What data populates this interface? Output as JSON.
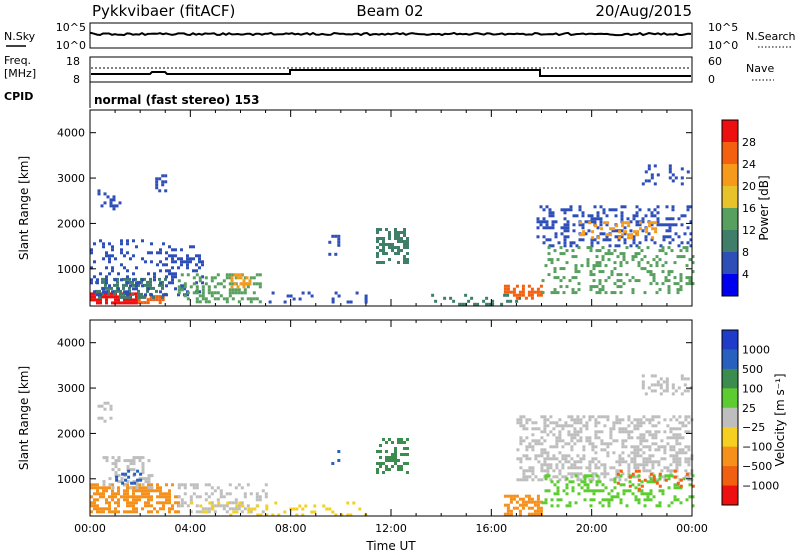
{
  "header": {
    "station": "Pykkvibaer (fitACF)",
    "beam": "Beam 02",
    "date": "20/Aug/2015"
  },
  "summary": {
    "left_labels": {
      "nsky": "N.Sky",
      "freq": "Freq.",
      "freq_unit": "[MHz]",
      "cpid": "CPID"
    },
    "right_labels": {
      "nsearch": "N.Search",
      "nave": "Nave"
    },
    "nsky_ticks": [
      "10^5",
      "10^0"
    ],
    "nsearch_ticks": [
      "10^5",
      "10^0"
    ],
    "freq_ticks": [
      "18",
      "8"
    ],
    "nave_ticks": [
      "60",
      "0"
    ],
    "cpid_text": "normal (fast stereo) 153"
  },
  "chart_data": [
    {
      "type": "heatmap",
      "quantity": "power",
      "ylabel": "Slant Range [km]",
      "xlabel": "",
      "ylim": [
        180,
        4500
      ],
      "yticks": [
        1000,
        2000,
        3000,
        4000
      ],
      "xlim": [
        0,
        24
      ],
      "colorbar": {
        "label": "Power [dB]",
        "ticks": [
          4,
          8,
          12,
          16,
          20,
          24,
          28
        ],
        "range": [
          0,
          32
        ],
        "colors": [
          "#0000ee",
          "#2f4fb8",
          "#3f7f6a",
          "#58a060",
          "#e7c22a",
          "#f59a1a",
          "#f36010",
          "#ee1010"
        ]
      },
      "scatter_regions": [
        {
          "t": [
            0.0,
            1.9
          ],
          "r": [
            250,
            480
          ],
          "color": "#ee1010",
          "density": 0.8
        },
        {
          "t": [
            1.9,
            2.9
          ],
          "r": [
            250,
            420
          ],
          "color": "#f36010",
          "density": 0.65
        },
        {
          "t": [
            0.2,
            3.0
          ],
          "r": [
            400,
            800
          ],
          "color": "#3f7f6a",
          "density": 0.5
        },
        {
          "t": [
            0.0,
            4.5
          ],
          "r": [
            450,
            1650
          ],
          "color": "#2f4fb8",
          "density": 0.22
        },
        {
          "t": [
            0.3,
            1.2
          ],
          "r": [
            2300,
            2750
          ],
          "color": "#2f4fb8",
          "density": 0.35
        },
        {
          "t": [
            2.6,
            3.0
          ],
          "r": [
            2700,
            3150
          ],
          "color": "#2f4fb8",
          "density": 0.35
        },
        {
          "t": [
            3.5,
            6.8
          ],
          "r": [
            300,
            900
          ],
          "color": "#58a060",
          "density": 0.35
        },
        {
          "t": [
            5.6,
            6.4
          ],
          "r": [
            600,
            900
          ],
          "color": "#f59a1a",
          "density": 0.5
        },
        {
          "t": [
            7.0,
            11.0
          ],
          "r": [
            250,
            500
          ],
          "color": "#2f4fb8",
          "density": 0.22
        },
        {
          "t": [
            9.5,
            9.9
          ],
          "r": [
            1300,
            1750
          ],
          "color": "#2f4fb8",
          "density": 0.3
        },
        {
          "t": [
            11.4,
            12.6
          ],
          "r": [
            1150,
            1900
          ],
          "color": "#3f7f6a",
          "density": 0.45
        },
        {
          "t": [
            13.6,
            17.4
          ],
          "r": [
            200,
            450
          ],
          "color": "#3f7f6a",
          "density": 0.22
        },
        {
          "t": [
            16.5,
            18.0
          ],
          "r": [
            350,
            650
          ],
          "color": "#f36010",
          "density": 0.55
        },
        {
          "t": [
            17.8,
            24.0
          ],
          "r": [
            1500,
            2400
          ],
          "color": "#2f4fb8",
          "density": 0.32
        },
        {
          "t": [
            19.5,
            22.5
          ],
          "r": [
            1700,
            2050
          ],
          "color": "#f59a1a",
          "density": 0.3
        },
        {
          "t": [
            18.0,
            24.0
          ],
          "r": [
            500,
            1500
          ],
          "color": "#58a060",
          "density": 0.25
        },
        {
          "t": [
            22.0,
            23.8
          ],
          "r": [
            2900,
            3300
          ],
          "color": "#2f4fb8",
          "density": 0.25
        }
      ]
    },
    {
      "type": "heatmap",
      "quantity": "velocity",
      "ylabel": "Slant Range [km]",
      "xlabel": "Time UT",
      "ylim": [
        180,
        4500
      ],
      "yticks": [
        1000,
        2000,
        3000,
        4000
      ],
      "xlim": [
        0,
        24
      ],
      "xtick_labels": [
        "00:00",
        "04:00",
        "08:00",
        "12:00",
        "16:00",
        "20:00",
        "00:00"
      ],
      "colorbar": {
        "label": "Velocity [m s⁻¹]",
        "ticks": [
          "1000",
          "500",
          "100",
          "25",
          "−25",
          "−100",
          "−500",
          "−1000"
        ],
        "colors": [
          "#1e3cc8",
          "#2860c0",
          "#3c8c50",
          "#5ccc30",
          "#bebebe",
          "#f5d020",
          "#f5901a",
          "#f06010",
          "#ee1010"
        ]
      },
      "scatter_regions": [
        {
          "t": [
            0.0,
            3.5
          ],
          "r": [
            250,
            900
          ],
          "color": "#f5901a",
          "density": 0.55
        },
        {
          "t": [
            0.5,
            2.5
          ],
          "r": [
            800,
            1500
          ],
          "color": "#bebebe",
          "density": 0.3
        },
        {
          "t": [
            1.0,
            2.0
          ],
          "r": [
            900,
            1200
          ],
          "color": "#2860c0",
          "density": 0.35
        },
        {
          "t": [
            0.3,
            1.0
          ],
          "r": [
            2300,
            2700
          ],
          "color": "#bebebe",
          "density": 0.3
        },
        {
          "t": [
            3.5,
            7.0
          ],
          "r": [
            250,
            900
          ],
          "color": "#bebebe",
          "density": 0.3
        },
        {
          "t": [
            4.0,
            11.0
          ],
          "r": [
            200,
            500
          ],
          "color": "#f5d020",
          "density": 0.15
        },
        {
          "t": [
            9.5,
            9.9
          ],
          "r": [
            1300,
            1700
          ],
          "color": "#2860c0",
          "density": 0.3
        },
        {
          "t": [
            11.4,
            12.6
          ],
          "r": [
            1150,
            1900
          ],
          "color": "#3c8c50",
          "density": 0.4
        },
        {
          "t": [
            16.5,
            18.0
          ],
          "r": [
            250,
            650
          ],
          "color": "#f5901a",
          "density": 0.55
        },
        {
          "t": [
            17.0,
            24.0
          ],
          "r": [
            1000,
            2400
          ],
          "color": "#bebebe",
          "density": 0.4
        },
        {
          "t": [
            18.0,
            24.0
          ],
          "r": [
            400,
            1100
          ],
          "color": "#5ccc30",
          "density": 0.25
        },
        {
          "t": [
            21.0,
            24.0
          ],
          "r": [
            800,
            1200
          ],
          "color": "#f06010",
          "density": 0.15
        },
        {
          "t": [
            22.0,
            24.0
          ],
          "r": [
            2900,
            3300
          ],
          "color": "#bebebe",
          "density": 0.3
        }
      ]
    }
  ]
}
